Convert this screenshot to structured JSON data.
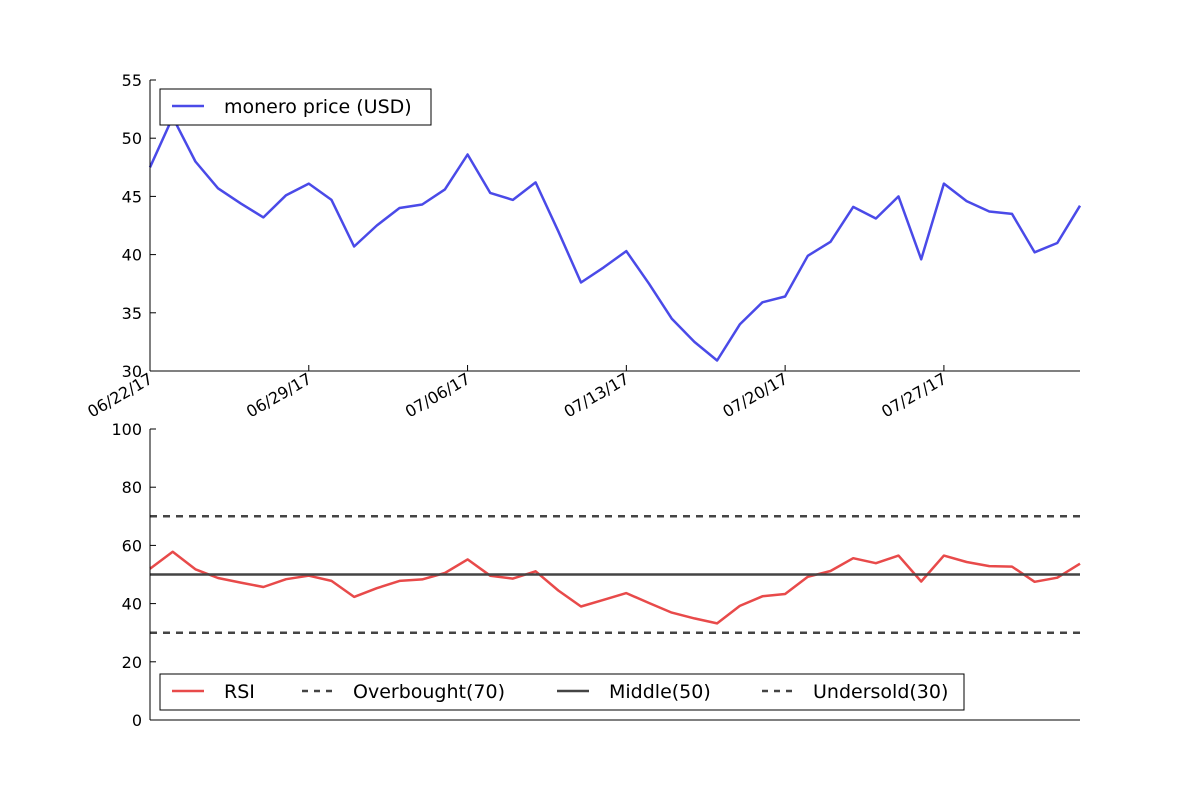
{
  "chart_data": [
    {
      "type": "line",
      "title": "",
      "xlabel": "",
      "ylabel": "",
      "ylim": [
        30,
        55
      ],
      "yticks": [
        "30",
        "35",
        "40",
        "45",
        "50",
        "55"
      ],
      "xticks": [
        "06/22/17",
        "06/29/17",
        "07/06/17",
        "07/13/17",
        "07/20/17",
        "07/27/17"
      ],
      "legend_position": "top-left",
      "grid": false,
      "x": [
        "06/22/17",
        "06/23/17",
        "06/24/17",
        "06/25/17",
        "06/26/17",
        "06/27/17",
        "06/28/17",
        "06/29/17",
        "06/30/17",
        "07/01/17",
        "07/02/17",
        "07/03/17",
        "07/04/17",
        "07/05/17",
        "07/06/17",
        "07/07/17",
        "07/08/17",
        "07/09/17",
        "07/10/17",
        "07/11/17",
        "07/12/17",
        "07/13/17",
        "07/14/17",
        "07/15/17",
        "07/16/17",
        "07/17/17",
        "07/18/17",
        "07/19/17",
        "07/20/17",
        "07/21/17",
        "07/22/17",
        "07/23/17",
        "07/24/17",
        "07/25/17",
        "07/26/17",
        "07/27/17",
        "07/28/17",
        "07/29/17",
        "07/30/17",
        "07/31/17",
        "08/01/17",
        "08/02/17"
      ],
      "series": [
        {
          "name": "monero price (USD)",
          "color": "#4a4ae8",
          "values": [
            47.5,
            51.8,
            48.0,
            45.7,
            44.4,
            43.2,
            45.1,
            46.1,
            44.7,
            40.7,
            42.5,
            44.0,
            44.3,
            45.6,
            48.6,
            45.3,
            44.7,
            46.2,
            42.0,
            37.6,
            38.9,
            40.3,
            37.5,
            34.5,
            32.5,
            30.9,
            34.0,
            35.9,
            36.4,
            39.9,
            41.1,
            44.1,
            43.1,
            45.0,
            39.6,
            46.1,
            44.6,
            43.7,
            43.5,
            40.2,
            41.0,
            44.2
          ]
        }
      ]
    },
    {
      "type": "line",
      "title": "",
      "xlabel": "",
      "ylabel": "",
      "ylim": [
        0,
        100
      ],
      "yticks": [
        "0",
        "20",
        "40",
        "60",
        "80",
        "100"
      ],
      "legend_position": "bottom-left",
      "grid": false,
      "series": [
        {
          "name": "RSI",
          "color": "#e84a4a",
          "style": "solid",
          "values": [
            52.0,
            57.8,
            51.8,
            48.8,
            47.2,
            45.7,
            48.4,
            49.6,
            47.8,
            42.3,
            45.3,
            47.8,
            48.3,
            50.5,
            55.2,
            49.6,
            48.6,
            51.1,
            44.5,
            39.0,
            41.3,
            43.6,
            40.2,
            36.9,
            34.9,
            33.2,
            39.2,
            42.5,
            43.3,
            49.2,
            51.2,
            55.6,
            53.9,
            56.5,
            47.6,
            56.5,
            54.3,
            52.9,
            52.7,
            47.5,
            48.9,
            53.7
          ]
        },
        {
          "name": "Overbought(70)",
          "color": "#444444",
          "style": "dashed",
          "constant": 70
        },
        {
          "name": "Middle(50)",
          "color": "#444444",
          "style": "solid",
          "constant": 50
        },
        {
          "name": "Undersold(30)",
          "color": "#444444",
          "style": "dashed",
          "constant": 30
        }
      ]
    }
  ]
}
